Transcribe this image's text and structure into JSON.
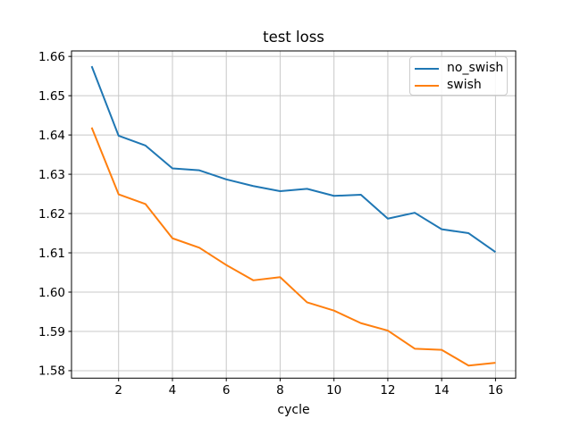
{
  "chart_data": {
    "type": "line",
    "title": "test loss",
    "xlabel": "cycle",
    "ylabel": "",
    "background_color": "#ffffff",
    "grid": true,
    "grid_color": "#c8c8c8",
    "spine_color": "#000000",
    "legend_position": "upper right",
    "x": [
      1,
      2,
      3,
      4,
      5,
      6,
      7,
      8,
      9,
      10,
      11,
      12,
      13,
      14,
      15,
      16
    ],
    "series": [
      {
        "name": "no_swish",
        "color": "#1f77b4",
        "values": [
          1.6575,
          1.6398,
          1.6373,
          1.6315,
          1.631,
          1.6287,
          1.627,
          1.6257,
          1.6263,
          1.6245,
          1.6248,
          1.6187,
          1.6202,
          1.616,
          1.615,
          1.6102
        ]
      },
      {
        "name": "swish",
        "color": "#ff7f0e",
        "values": [
          1.6419,
          1.6249,
          1.6224,
          1.6137,
          1.6113,
          1.6069,
          1.603,
          1.6038,
          1.5974,
          1.5953,
          1.5921,
          1.5902,
          1.5856,
          1.5853,
          1.5813,
          1.582
        ]
      }
    ],
    "xlim": [
      0.25,
      16.75
    ],
    "ylim": [
      1.5781,
      1.6614
    ],
    "xticks": [
      2,
      4,
      6,
      8,
      10,
      12,
      14,
      16
    ],
    "ytick_labels": [
      "1.58",
      "1.59",
      "1.60",
      "1.61",
      "1.62",
      "1.63",
      "1.64",
      "1.65",
      "1.66"
    ]
  }
}
